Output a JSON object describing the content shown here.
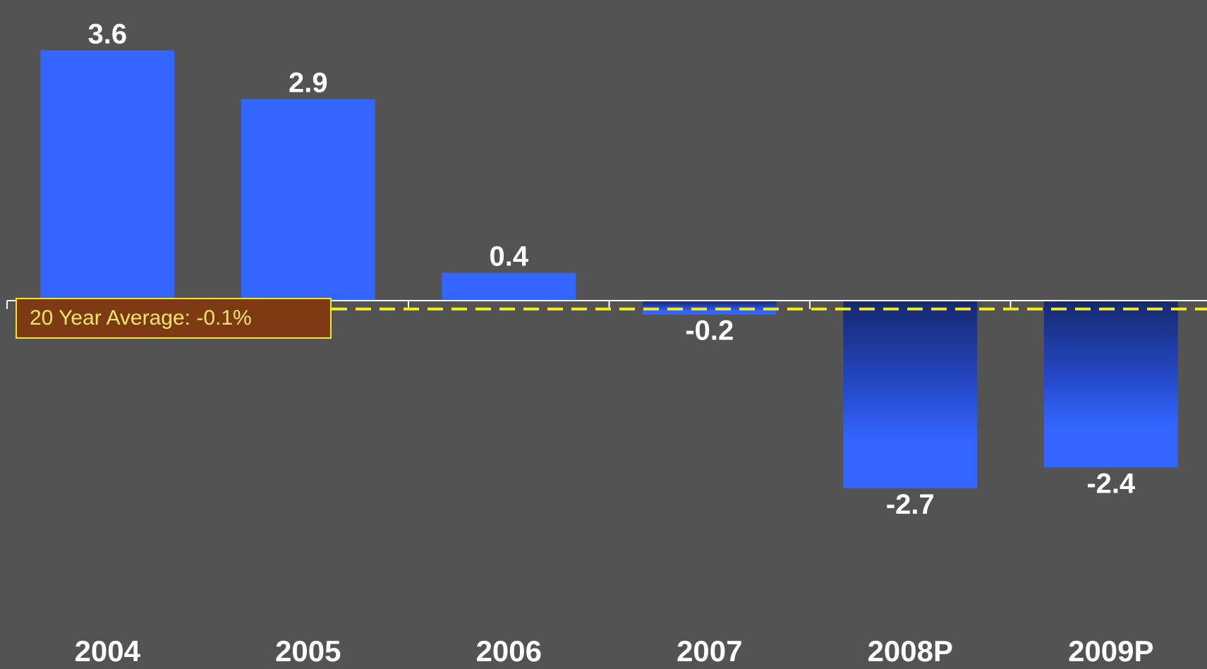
{
  "chart_data": {
    "type": "bar",
    "categories": [
      "2004",
      "2005",
      "2006",
      "2007",
      "2008P",
      "2009P"
    ],
    "values": [
      3.6,
      2.9,
      0.4,
      -0.2,
      -2.7,
      -2.4
    ],
    "data_labels": [
      "3.6",
      "2.9",
      "0.4",
      "-0.2",
      "-2.7",
      "-2.4"
    ],
    "title": "",
    "xlabel": "",
    "ylabel": "",
    "ylim": [
      -4.6,
      4.0
    ],
    "grid": false,
    "annotation": {
      "label": "20 Year Average: -0.1%",
      "value": -0.1
    },
    "colors": {
      "background": "#535353",
      "bar": "#3366ff",
      "bar_dark": "#16286e",
      "axis": "#ffffff",
      "average_line": "#f2ea1d",
      "label_text": "#ffffff"
    }
  }
}
